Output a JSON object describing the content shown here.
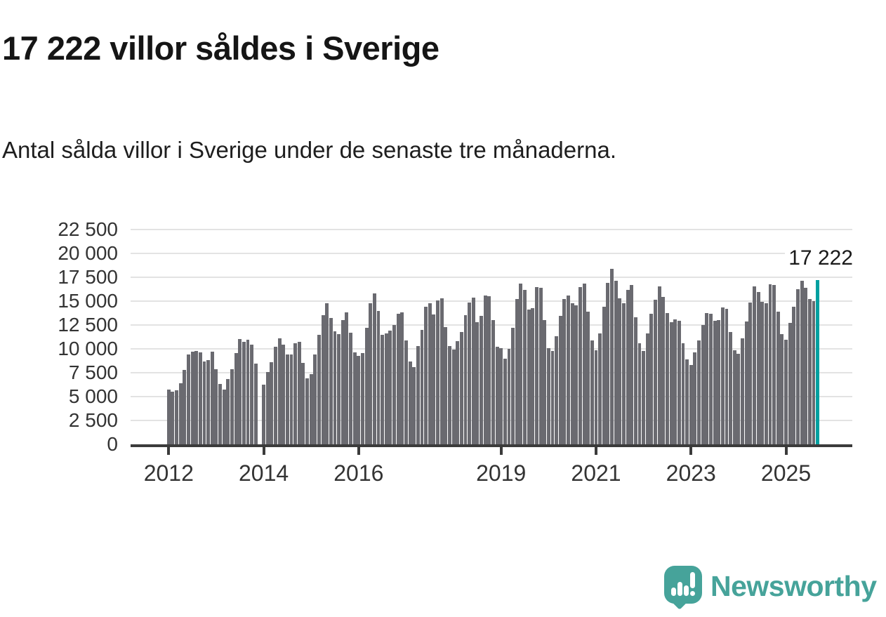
{
  "header": {
    "title": "17 222 villor såldes i Sverige",
    "subtitle": "Antal sålda villor i Sverige under de senaste tre månaderna."
  },
  "annotation": {
    "label": "17 222",
    "value": 17222
  },
  "branding": {
    "name": "Newsworthy",
    "logo_icon": "speech-bubble-bar-chart-exclamation",
    "color": "#46a39a"
  },
  "colors": {
    "bar": "#6a6a70",
    "highlight_bar": "#00a0a0",
    "gridline": "#e3e3e3",
    "axis": "#3b3b3b",
    "tick_text": "#333333",
    "title_text": "#151515"
  },
  "chart_data": {
    "type": "bar",
    "title": "17 222 villor såldes i Sverige",
    "xlabel": "",
    "ylabel": "",
    "ylim": [
      0,
      22500
    ],
    "grid": "horizontal",
    "y_ticks": [
      {
        "value": 0,
        "label": "0"
      },
      {
        "value": 2500,
        "label": "2 500"
      },
      {
        "value": 5000,
        "label": "5 000"
      },
      {
        "value": 7500,
        "label": "7 500"
      },
      {
        "value": 10000,
        "label": "10 000"
      },
      {
        "value": 12500,
        "label": "12 500"
      },
      {
        "value": 15000,
        "label": "15 000"
      },
      {
        "value": 17500,
        "label": "17 500"
      },
      {
        "value": 20000,
        "label": "20 000"
      },
      {
        "value": 22500,
        "label": "22 500"
      }
    ],
    "x_ticks": [
      {
        "label": "2012",
        "month_offset": 0
      },
      {
        "label": "2014",
        "month_offset": 24
      },
      {
        "label": "2016",
        "month_offset": 48
      },
      {
        "label": "2019",
        "month_offset": 84
      },
      {
        "label": "2021",
        "month_offset": 108
      },
      {
        "label": "2023",
        "month_offset": 132
      },
      {
        "label": "2025",
        "month_offset": 156
      }
    ],
    "series_note": "monthly bars, Jan 2012 - Sep 2025, value = houses sold in trailing three months; Dec 2013 missing (gap); last bar highlighted teal with label 17 222",
    "values_by_year": {
      "2012": [
        5730,
        5510,
        5680,
        6390,
        7830,
        9390,
        9710,
        9760,
        9610,
        8660,
        8810,
        9710
      ],
      "2013": [
        7840,
        6290,
        5750,
        6870,
        7840,
        9540,
        11050,
        10760,
        10930,
        10420,
        8470,
        null
      ],
      "2014": [
        6250,
        7560,
        8610,
        10250,
        11100,
        10420,
        9390,
        9390,
        10570,
        10740,
        8540,
        6910
      ],
      "2015": [
        7320,
        9390,
        11470,
        13540,
        14810,
        13250,
        11830,
        11520,
        13010,
        13830,
        11660,
        9640
      ],
      "2016": [
        9300,
        9590,
        12190,
        14780,
        15800,
        13950,
        11440,
        11610,
        11900,
        12510,
        13660,
        13800
      ],
      "2017": [
        10880,
        8680,
        8070,
        10270,
        11980,
        14420,
        14780,
        13590,
        15070,
        15320,
        12270,
        10300
      ],
      "2018": [
        9930,
        10810,
        11760,
        13540,
        14880,
        15350,
        12810,
        13470,
        15590,
        15510,
        13000,
        10250
      ],
      "2019": [
        10080,
        8950,
        10000,
        12200,
        15230,
        16840,
        16150,
        14150,
        14270,
        16470,
        16400,
        13050
      ],
      "2020": [
        10080,
        9760,
        11350,
        13490,
        15230,
        15620,
        14760,
        14590,
        16470,
        16840,
        13910,
        10910
      ],
      "2021": [
        9880,
        11590,
        14400,
        16900,
        18370,
        17100,
        15300,
        14800,
        16200,
        16700,
        13320,
        10560
      ],
      "2022": [
        9760,
        11590,
        13680,
        15140,
        16540,
        15440,
        13760,
        12760,
        13120,
        12950,
        10560,
        8900
      ],
      "2023": [
        8320,
        9630,
        10850,
        12510,
        13730,
        13680,
        12950,
        13000,
        14340,
        14220,
        11770,
        9820
      ],
      "2024": [
        9500,
        11090,
        12870,
        14820,
        16520,
        15990,
        14940,
        14770,
        16770,
        16690,
        13890,
        11530
      ],
      "2025": [
        10920,
        12750,
        14400,
        16280,
        17130,
        16400,
        15230,
        14990,
        17222
      ]
    },
    "start_year": 2012,
    "highlight_last_bar": true
  }
}
